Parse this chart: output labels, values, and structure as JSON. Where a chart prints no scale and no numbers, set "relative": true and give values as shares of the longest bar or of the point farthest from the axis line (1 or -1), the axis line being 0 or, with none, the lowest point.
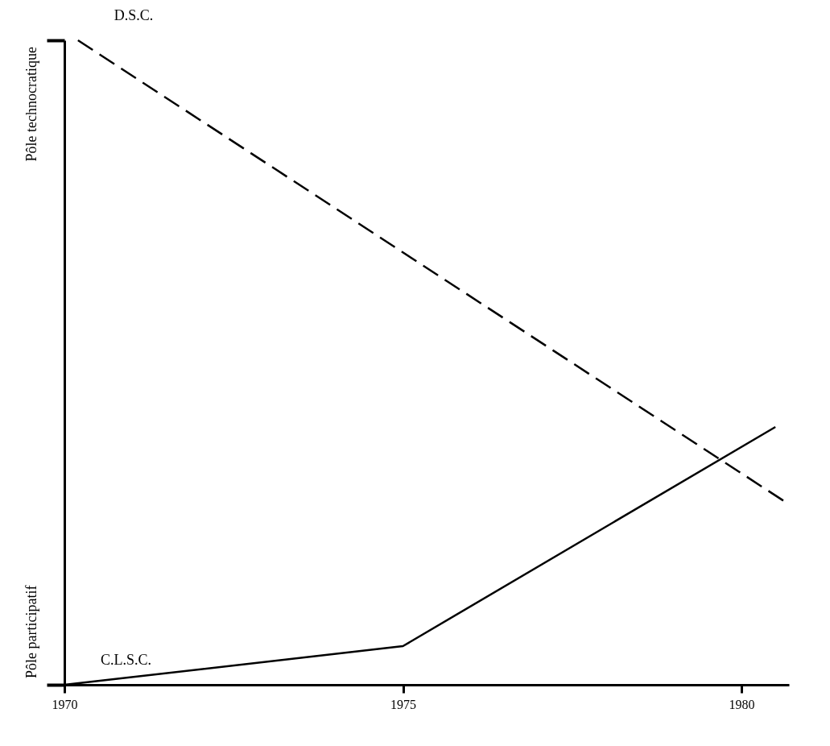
{
  "chart_data": {
    "type": "line",
    "relative": true,
    "series": [
      {
        "name": "D.S.C.",
        "color": "#000000",
        "line_style": "dashed",
        "x": [
          1970.2,
          1980.7
        ],
        "values": [
          1,
          0.28
        ]
      },
      {
        "name": "C.L.S.C.",
        "color": "#000000",
        "line_style": "solid",
        "x": [
          1970,
          1975,
          1980.5
        ],
        "values": [
          0,
          0.06,
          0.4
        ]
      }
    ],
    "xlim": [
      1970,
      1980.7
    ],
    "xticks": [
      1970,
      1975,
      1980
    ],
    "annotations": [
      "Pôle technocratique",
      "Pôle participatif"
    ],
    "grid": false
  }
}
